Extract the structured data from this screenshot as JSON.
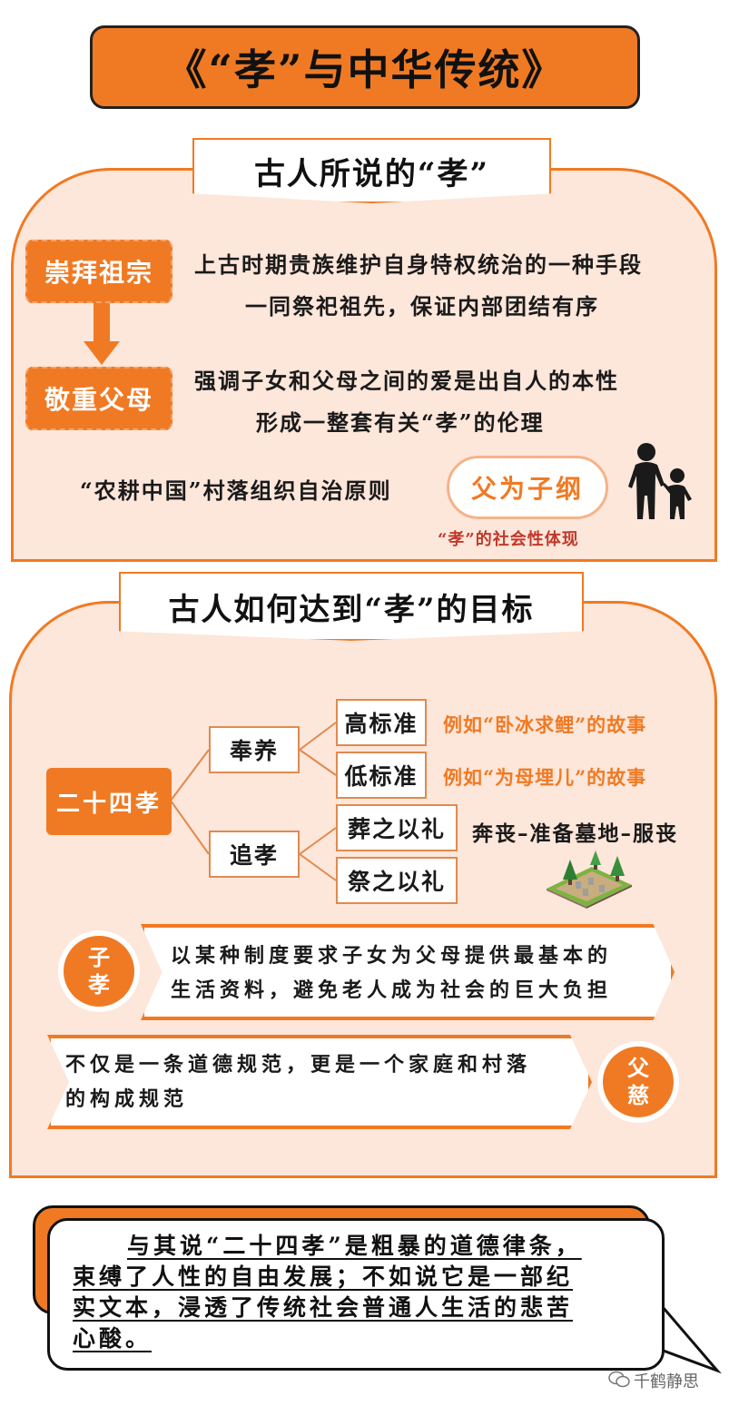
{
  "title": "《“孝”与中华传统》",
  "section1": {
    "banner": "古人所说的“孝”",
    "tag1": "崇拜祖宗",
    "tag2": "敬重父母",
    "line1": "上古时期贵族维护自身特权统治的一种手段",
    "line2": "一同祭祀祖先，保证内部团结有序",
    "line3": "强调子女和父母之间的爱是出自人的本性",
    "line4": "形成一整套有关“孝”的伦理",
    "village": "“农耕中国”村落组织自治原则",
    "pill": "父为子纲",
    "social": "“孝”的社会性体现"
  },
  "section2": {
    "banner": "古人如何达到“孝”的目标",
    "root": "二十四孝",
    "branch1": "奉养",
    "branch2": "追孝",
    "leaf1": "高标准",
    "leaf2": "低标准",
    "leaf3": "葬之以礼",
    "leaf4": "祭之以礼",
    "ex1": "例如“卧冰求鲤”的故事",
    "ex2": "例如“为母埋儿”的故事",
    "ex3": "奔丧–准备墓地–服丧",
    "c1_top": "子",
    "c1_bottom": "孝",
    "c1_text1": "以某种制度要求子女为父母提供最基本的",
    "c1_text2": "生活资料，避免老人成为社会的巨大负担",
    "c2_top": "父",
    "c2_bottom": "慈",
    "c2_text1": "不仅是一条道德规范，更是一个家庭和村落",
    "c2_text2": "的构成规范"
  },
  "quote": {
    "line1": "与其说“二十四孝”是粗暴的道德律条，",
    "line2": "束缚了人性的自由发展；不如说它是一部纪",
    "line3": "实文本，浸透了传统社会普通人生活的悲苦",
    "line4": "心酸。"
  },
  "watermark": "千鹤静思",
  "colors": {
    "accent": "#f07a23",
    "panel": "#fde6da",
    "red": "#c0392b"
  }
}
